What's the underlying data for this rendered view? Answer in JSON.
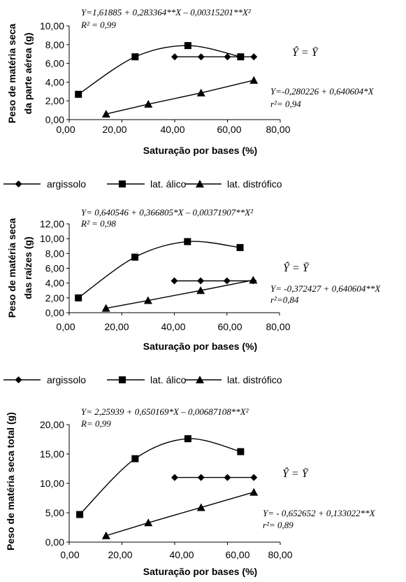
{
  "legend": [
    "argissolo",
    "lat. álico",
    "lat. distrófico"
  ],
  "yhat_label": "Ŷ = Ȳ",
  "chart_data": [
    {
      "type": "scatter",
      "xlabel": "Saturação por bases (%)",
      "ylabel_lines": [
        "Peso de matéria seca",
        "da parte aérea (g)"
      ],
      "xticks": [
        "0,00",
        "20,00",
        "40,00",
        "60,00",
        "80,00"
      ],
      "yticks": [
        "0,00",
        "2,00",
        "4,00",
        "6,00",
        "8,00",
        "10,00"
      ],
      "xlim": [
        0,
        80
      ],
      "ylim": [
        0,
        10
      ],
      "series": [
        {
          "name": "argissolo",
          "marker": "diamond",
          "x": [
            40,
            50,
            60,
            70
          ],
          "y": [
            6.7,
            6.7,
            6.7,
            6.7
          ]
        },
        {
          "name": "lat. álico",
          "marker": "square",
          "x": [
            3.5,
            25,
            45,
            65
          ],
          "y": [
            2.7,
            6.7,
            7.9,
            6.7
          ]
        },
        {
          "name": "lat. distrófico",
          "marker": "triangle",
          "x": [
            14,
            30,
            50,
            70
          ],
          "y": [
            0.6,
            1.65,
            2.85,
            4.2
          ]
        }
      ],
      "eq_top": [
        "Y=1,61885 + 0,283364**X – 0,00315201**X²",
        "R² = 0,99"
      ],
      "eq_right": [
        "Y=-0,280226 + 0,640604*X",
        "r²= 0,94"
      ]
    },
    {
      "type": "scatter",
      "xlabel": "Saturação por bases (%)",
      "ylabel_lines": [
        "Peso de matéria seca",
        "das raízes (g)"
      ],
      "xticks": [
        "0,00",
        "20,00",
        "40,00",
        "60,00",
        "80,00"
      ],
      "yticks": [
        "0,00",
        "2,00",
        "4,00",
        "6,00",
        "8,00",
        "10,00",
        "12,00"
      ],
      "xlim": [
        0,
        80
      ],
      "ylim": [
        0,
        12
      ],
      "series": [
        {
          "name": "argissolo",
          "marker": "diamond",
          "x": [
            40,
            50,
            60,
            70
          ],
          "y": [
            4.3,
            4.3,
            4.3,
            4.3
          ]
        },
        {
          "name": "lat. álico",
          "marker": "square",
          "x": [
            3.5,
            25,
            45,
            65
          ],
          "y": [
            2.0,
            7.5,
            9.6,
            8.8
          ]
        },
        {
          "name": "lat. distrófico",
          "marker": "triangle",
          "x": [
            14,
            30,
            50,
            70
          ],
          "y": [
            0.6,
            1.65,
            3.0,
            4.4
          ]
        }
      ],
      "eq_top": [
        "Y= 0,640546 + 0,366805*X – 0,00371907**X²",
        "R² = 0,98"
      ],
      "eq_right": [
        "Y= -0,372427 + 0,640604**X",
        "r²=0,84"
      ]
    },
    {
      "type": "scatter",
      "xlabel": "Saturação por bases (%)",
      "ylabel_lines": [
        "Peso de matéria seca total (g)"
      ],
      "xticks": [
        "0,00",
        "20,00",
        "40,00",
        "60,00",
        "80,00"
      ],
      "yticks": [
        "0,00",
        "5,00",
        "10,00",
        "15,00",
        "20,00"
      ],
      "xlim": [
        0,
        80
      ],
      "ylim": [
        0,
        20
      ],
      "series": [
        {
          "name": "argissolo",
          "marker": "diamond",
          "x": [
            40,
            50,
            60,
            70
          ],
          "y": [
            11.0,
            11.0,
            11.0,
            11.0
          ]
        },
        {
          "name": "lat. álico",
          "marker": "square",
          "x": [
            4,
            25,
            45,
            65
          ],
          "y": [
            4.7,
            14.2,
            17.6,
            15.4
          ]
        },
        {
          "name": "lat. distrófico",
          "marker": "triangle",
          "x": [
            14,
            30,
            50,
            70
          ],
          "y": [
            1.1,
            3.3,
            5.9,
            8.5
          ]
        }
      ],
      "eq_top": [
        "Y= 2,25939 + 0,650169*X – 0,00687108**X²",
        "R= 0,99"
      ],
      "eq_right": [
        "Y= - 0,652652 + 0,133022**X",
        "r²= 0,89"
      ]
    }
  ]
}
